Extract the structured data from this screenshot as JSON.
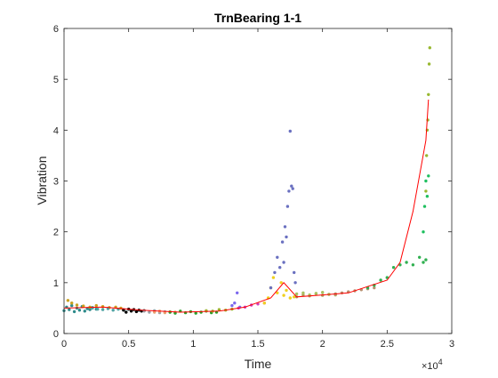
{
  "chart_data": {
    "type": "scatter",
    "title": "TrnBearing 1-1",
    "xlabel": "Time",
    "ylabel": "Vibration",
    "x_exponent_label": "×10",
    "x_exponent_power": "4",
    "xlim": [
      0,
      3
    ],
    "ylim": [
      0,
      6
    ],
    "x_ticks": [
      0,
      0.5,
      1,
      1.5,
      2,
      2.5,
      3
    ],
    "x_tick_labels": [
      "0",
      "0.5",
      "1",
      "1.5",
      "2",
      "2.5",
      "3"
    ],
    "y_ticks": [
      0,
      1,
      2,
      3,
      4,
      5,
      6
    ],
    "y_tick_labels": [
      "0",
      "1",
      "2",
      "3",
      "4",
      "5",
      "6"
    ],
    "grid": false,
    "series": [
      {
        "color": "#2e8b8b",
        "x": [
          0.0,
          0.02,
          0.04,
          0.06,
          0.08,
          0.1,
          0.12,
          0.14,
          0.16,
          0.18,
          0.2,
          0.22,
          0.25
        ],
        "y": [
          0.45,
          0.52,
          0.47,
          0.55,
          0.43,
          0.5,
          0.46,
          0.53,
          0.44,
          0.49,
          0.47,
          0.51,
          0.48
        ]
      },
      {
        "color": "#c8a020",
        "x": [
          0.03,
          0.06,
          0.1,
          0.15,
          0.2,
          0.25,
          0.3,
          0.35,
          0.4,
          0.44
        ],
        "y": [
          0.65,
          0.6,
          0.56,
          0.54,
          0.52,
          0.55,
          0.53,
          0.51,
          0.52,
          0.5
        ]
      },
      {
        "color": "#4fa3a3",
        "x": [
          0.22,
          0.26,
          0.3,
          0.34,
          0.38,
          0.42,
          0.46
        ],
        "y": [
          0.5,
          0.48,
          0.47,
          0.49,
          0.46,
          0.48,
          0.47
        ]
      },
      {
        "color": "#000000",
        "x": [
          0.46,
          0.48,
          0.5,
          0.52,
          0.54,
          0.56,
          0.58,
          0.6,
          0.62
        ],
        "y": [
          0.46,
          0.42,
          0.48,
          0.44,
          0.47,
          0.43,
          0.46,
          0.44,
          0.45
        ]
      },
      {
        "color": "#9aa0a6",
        "x": [
          0.62,
          0.66,
          0.7,
          0.74,
          0.78,
          0.82
        ],
        "y": [
          0.44,
          0.42,
          0.45,
          0.41,
          0.43,
          0.42
        ]
      },
      {
        "color": "#e8a070",
        "x": [
          0.7,
          0.74,
          0.78,
          0.82,
          0.86
        ],
        "y": [
          0.42,
          0.44,
          0.41,
          0.43,
          0.42
        ]
      },
      {
        "color": "#2ca02c",
        "x": [
          0.82,
          0.86,
          0.9,
          0.94,
          0.98,
          1.02,
          1.06,
          1.1,
          1.14,
          1.18
        ],
        "y": [
          0.42,
          0.4,
          0.44,
          0.41,
          0.43,
          0.4,
          0.42,
          0.44,
          0.41,
          0.42
        ]
      },
      {
        "color": "#a0b030",
        "x": [
          1.1,
          1.15,
          1.2,
          1.25,
          1.3
        ],
        "y": [
          0.45,
          0.44,
          0.47,
          0.46,
          0.48
        ]
      },
      {
        "color": "#7b68ee",
        "x": [
          1.3,
          1.32,
          1.34,
          1.36
        ],
        "y": [
          0.55,
          0.6,
          0.8,
          0.52
        ]
      },
      {
        "color": "#d040c0",
        "x": [
          1.35,
          1.4,
          1.45,
          1.5,
          1.55
        ],
        "y": [
          0.5,
          0.52,
          0.56,
          0.58,
          0.6
        ]
      },
      {
        "color": "#f0d020",
        "x": [
          1.55,
          1.58,
          1.6,
          1.62,
          1.65,
          1.68,
          1.7,
          1.72,
          1.75,
          1.78
        ],
        "y": [
          0.6,
          0.7,
          0.9,
          1.1,
          0.8,
          1.0,
          0.75,
          0.85,
          0.7,
          0.72
        ]
      },
      {
        "color": "#6a70c0",
        "x": [
          1.6,
          1.63,
          1.65,
          1.67,
          1.69,
          1.7,
          1.71,
          1.72,
          1.73,
          1.74,
          1.75,
          1.76,
          1.77,
          1.78,
          1.79
        ],
        "y": [
          0.9,
          1.2,
          1.5,
          1.3,
          1.8,
          1.4,
          2.1,
          1.9,
          2.5,
          2.8,
          3.98,
          2.9,
          2.85,
          1.2,
          1.0
        ]
      },
      {
        "color": "#b0a060",
        "x": [
          1.8,
          1.85,
          1.9,
          1.95,
          2.0,
          2.05,
          2.1
        ],
        "y": [
          0.72,
          0.76,
          0.74,
          0.78,
          0.75,
          0.77,
          0.76
        ]
      },
      {
        "color": "#a8c060",
        "x": [
          1.8,
          1.85,
          1.9,
          1.95,
          2.0,
          2.05,
          2.1
        ],
        "y": [
          0.78,
          0.8,
          0.76,
          0.79,
          0.81,
          0.77,
          0.78
        ]
      },
      {
        "color": "#b89070",
        "x": [
          2.1,
          2.15,
          2.2,
          2.25,
          2.3,
          2.35,
          2.4
        ],
        "y": [
          0.78,
          0.8,
          0.82,
          0.84,
          0.86,
          0.88,
          0.9
        ]
      },
      {
        "color": "#30b050",
        "x": [
          2.35,
          2.4,
          2.45,
          2.5,
          2.55,
          2.6,
          2.65,
          2.7,
          2.75,
          2.78,
          2.8
        ],
        "y": [
          0.9,
          0.95,
          1.05,
          1.1,
          1.3,
          1.35,
          1.4,
          1.35,
          1.5,
          1.4,
          1.45
        ]
      },
      {
        "color": "#20c060",
        "x": [
          2.78,
          2.79,
          2.8,
          2.81,
          2.82
        ],
        "y": [
          2.0,
          2.5,
          3.0,
          2.7,
          3.1
        ]
      },
      {
        "color": "#98b830",
        "x": [
          2.8,
          2.805,
          2.81,
          2.815,
          2.82,
          2.825,
          2.83
        ],
        "y": [
          2.8,
          3.5,
          4.0,
          4.2,
          4.7,
          5.3,
          5.62
        ]
      }
    ],
    "trend_line": {
      "color": "#ff0000",
      "x": [
        0.0,
        0.3,
        0.6,
        0.9,
        1.2,
        1.4,
        1.6,
        1.7,
        1.8,
        2.0,
        2.2,
        2.5,
        2.6,
        2.7,
        2.8,
        2.82
      ],
      "y": [
        0.5,
        0.52,
        0.46,
        0.42,
        0.44,
        0.52,
        0.7,
        1.0,
        0.72,
        0.76,
        0.8,
        1.05,
        1.4,
        2.4,
        3.8,
        4.6
      ]
    }
  }
}
